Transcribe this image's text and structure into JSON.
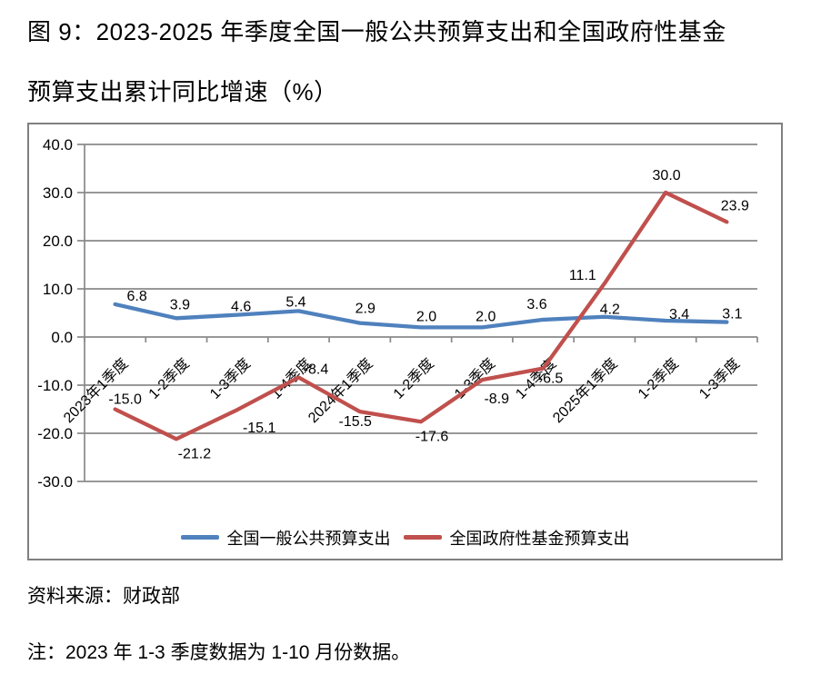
{
  "figure": {
    "title_line1": "图 9：2023-2025 年季度全国一般公共预算支出和全国政府性基金",
    "title_line2": "预算支出累计同比增速（%）",
    "source": "资料来源：财政部",
    "note": "注：2023 年 1-3 季度数据为 1-10 月份数据。"
  },
  "chart_data": {
    "type": "line",
    "categories": [
      "2023年1季度",
      "1-2季度",
      "1-3季度",
      "1-4季度",
      "2024年1季度",
      "1-2季度",
      "1-3季度",
      "1-4季度",
      "2025年1季度",
      "1-2季度",
      "1-3季度"
    ],
    "series": [
      {
        "name": "全国一般公共预算支出",
        "color": "#4F81BD",
        "values": [
          6.8,
          3.9,
          4.6,
          5.4,
          2.9,
          2.0,
          2.0,
          3.6,
          4.2,
          3.4,
          3.1
        ]
      },
      {
        "name": "全国政府性基金预算支出",
        "color": "#C0504D",
        "values": [
          -15.0,
          -21.2,
          -15.1,
          -8.4,
          -15.5,
          -17.6,
          -8.9,
          -6.5,
          11.1,
          30.0,
          23.9
        ]
      }
    ],
    "ylim": [
      -30,
      40
    ],
    "ytick_step": 10,
    "ytick_labels": [
      "40.0",
      "30.0",
      "20.0",
      "10.0",
      "0.0",
      "-10.0",
      "-20.0",
      "-30.0"
    ],
    "grid": true,
    "legend_position": "bottom",
    "grid_color": "#898989",
    "axis_color": "#898989",
    "label_color": "#000000",
    "xlabel": "",
    "ylabel": ""
  }
}
